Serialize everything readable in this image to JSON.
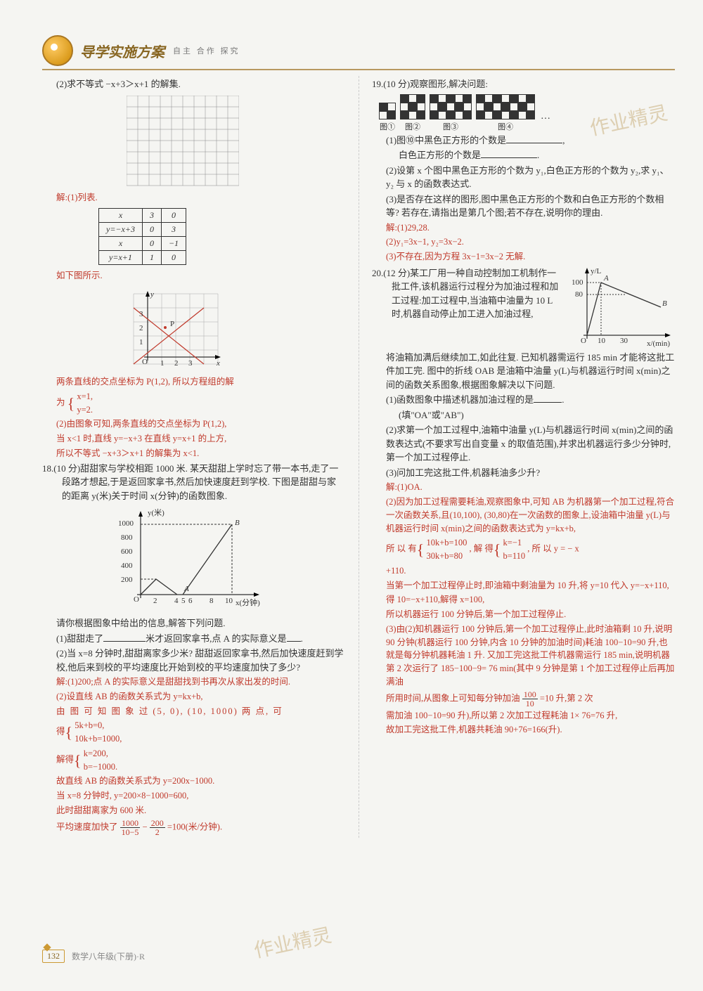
{
  "header": {
    "title": "导学实施方案",
    "subtitle": "自主  合作  探究"
  },
  "left": {
    "q17_2": "(2)求不等式 −x+3＞x+1 的解集.",
    "sol_label": "解:(1)列表.",
    "table": {
      "rows": [
        [
          "x",
          "3",
          "0"
        ],
        [
          "y=−x+3",
          "0",
          "3"
        ],
        [
          "x",
          "0",
          "−1"
        ],
        [
          "y=x+1",
          "1",
          "0"
        ]
      ]
    },
    "below_tbl": "如下图所示.",
    "graph1": {
      "P_label": "P",
      "axes": [
        "O",
        "1",
        "2",
        "3",
        "x",
        "y",
        "1",
        "2",
        "3"
      ]
    },
    "sol_p": "两条直线的交点坐标为 P(1,2), 所以方程组的解",
    "sol_brace": "为",
    "sol_x": "x=1,",
    "sol_y": "y=2.",
    "sol2a": "(2)由图象可知,两条直线的交点坐标为 P(1,2),",
    "sol2b": "当 x<1 时,直线 y=−x+3 在直线 y=x+1 的上方,",
    "sol2c": "所以不等式 −x+3＞x+1 的解集为 x<1.",
    "q18_head": "18.(10 分)甜甜家与学校相距 1000 米. 某天甜甜上学时忘了带一本书,走了一段路才想起,于是返回家拿书,然后加快速度赶到学校. 下图是甜甜与家的距离 y(米)关于时间 x(分钟)的函数图象.",
    "chart18": {
      "xlabel": "x(分钟)",
      "ylabel": "y(米)",
      "xticks": [
        "O",
        "2",
        "4",
        "5",
        "6",
        "8",
        "10"
      ],
      "yticks": [
        "200",
        "400",
        "600",
        "800",
        "1000"
      ],
      "pointA": "A",
      "pointB": "B"
    },
    "q18_sub": "请你根据图象中给出的信息,解答下列问题.",
    "q18_1a": "(1)甜甜走了",
    "q18_1b": "米才返回家拿书,点 A 的实际意义是",
    "q18_2": "(2)当 x=8 分钟时,甜甜离家多少米? 甜甜返回家拿书,然后加快速度赶到学校,他后来到校的平均速度比开始到校的平均速度加快了多少?",
    "s18_1": "解:(1)200;点 A 的实际意义是甜甜找到书再次从家出发的时间.",
    "s18_2a": "(2)设直线 AB 的函数关系式为 y=kx+b,",
    "s18_2b": "由 图 可 知 图 象 过 (5, 0), (10, 1000) 两 点, 可",
    "s18_2c": "得",
    "s18_eq1a": "5k+b=0,",
    "s18_eq1b": "10k+b=1000,",
    "s18_2d": "解得",
    "s18_eq2a": "k=200,",
    "s18_eq2b": "b=−1000.",
    "s18_2e": "故直线 AB 的函数关系式为 y=200x−1000.",
    "s18_2f": "当 x=8 分钟时, y=200×8−1000=600,",
    "s18_2g": "此时甜甜离家为 600 米.",
    "s18_2h_pre": "平均速度加快了",
    "s18_frac1_num": "1000",
    "s18_frac1_den": "10−5",
    "s18_minus": "−",
    "s18_frac2_num": "200",
    "s18_frac2_den": "2",
    "s18_2h_post": "=100(米/分钟)."
  },
  "right": {
    "q19_head": "19.(10 分)观察图形,解决问题:",
    "pattern_labels": [
      "图①",
      "图②",
      "图③",
      "图④"
    ],
    "q19_1a": "(1)图⑩中黑色正方形的个数是",
    "q19_1b": ",",
    "q19_1c": "白色正方形的个数是",
    "q19_1d": ".",
    "q19_2": "(2)设第 x 个图中黑色正方形的个数为 y₁,白色正方形的个数为 y₂,求 y₁、y₂ 与 x 的函数表达式.",
    "q19_3": "(3)是否存在这样的图形,图中黑色正方形的个数和白色正方形的个数相等? 若存在,请指出是第几个图;若不存在,说明你的理由.",
    "s19_1": "解:(1)29,28.",
    "s19_2": "(2)y₁=3x−1, y₂=3x−2.",
    "s19_3": "(3)不存在,因为方程 3x−1=3x−2 无解.",
    "q20_head": "20.(12 分)某工厂用一种自动控制加工机制作一批工件,该机器运行过程分为加油过程和加工过程:加工过程中,当油箱中油量为 10 L 时,机器自动停止加工进入加油过程,",
    "chart20": {
      "ylabel": "y/L",
      "xlabel": "x/(min)",
      "xticks": [
        "O",
        "10",
        "30"
      ],
      "yticks": [
        "80",
        "100"
      ],
      "pointA": "A",
      "pointB": "B"
    },
    "q20_body": "将油箱加满后继续加工,如此往复. 已知机器需运行 185 min 才能将这批工件加工完. 图中的折线 OAB 是油箱中油量 y(L)与机器运行时间 x(min)之间的函数关系图象,根据图象解决以下问题.",
    "q20_1a": "(1)函数图象中描述机器加油过程的是",
    "q20_1b": ".",
    "q20_1c": "(填\"OA\"或\"AB\")",
    "q20_2": "(2)求第一个加工过程中,油箱中油量 y(L)与机器运行时间 x(min)之间的函数表达式(不要求写出自变量 x 的取值范围),并求出机器运行多少分钟时,第一个加工过程停止.",
    "q20_3": "(3)问加工完这批工件,机器耗油多少升?",
    "s20_1": "解:(1)OA.",
    "s20_2a": "(2)因为加工过程需要耗油,观察图象中,可知 AB 为机器第一个加工过程,符合一次函数关系,且(10,100), (30,80)在一次函数的图象上,设油箱中油量 y(L)与机器运行时间 x(min)之间的函数表达式为 y=kx+b,",
    "s20_2b_pre": "所 以 有",
    "s20_eq1a": "10k+b=100",
    "s20_eq1b": "30k+b=80",
    "s20_2b_mid": ", 解 得",
    "s20_eq2a": "k=−1",
    "s20_eq2b": "b=110",
    "s20_2b_post": ", 所 以 y = − x",
    "s20_2c": "+110.",
    "s20_2d": "当第一个加工过程停止时,即油箱中剩油量为 10 升,将 y=10 代入 y=−x+110,",
    "s20_2e": "得 10=−x+110,解得 x=100,",
    "s20_2f": "所以机器运行 100 分钟后,第一个加工过程停止.",
    "s20_3a": "(3)由(2)知机器运行 100 分钟后,第一个加工过程停止,此时油箱剩 10 升,说明 90 分钟(机器运行 100 分钟,内含 10 分钟的加油时间)耗油 100−10=90 升,也就是每分钟机器耗油 1 升. 又加工完这批工件机器需运行 185 min,说明机器第 2 次运行了 185−100−9= 76 min(其中 9 分钟是第 1 个加工过程停止后再加满油",
    "s20_3b_pre": "所用时间,从图象上可知每分钟加油",
    "s20_frac_num": "100",
    "s20_frac_den": "10",
    "s20_3b_post": "=10 升,第 2 次",
    "s20_3c": "需加油 100−10=90 升),所以第 2 次加工过程耗油 1× 76=76 升,",
    "s20_3d": "故加工完这批工件,机器共耗油 90+76=166(升)."
  },
  "footer": {
    "page": "132",
    "text": "数学八年级(下册)·R"
  },
  "watermark": "作业精灵"
}
